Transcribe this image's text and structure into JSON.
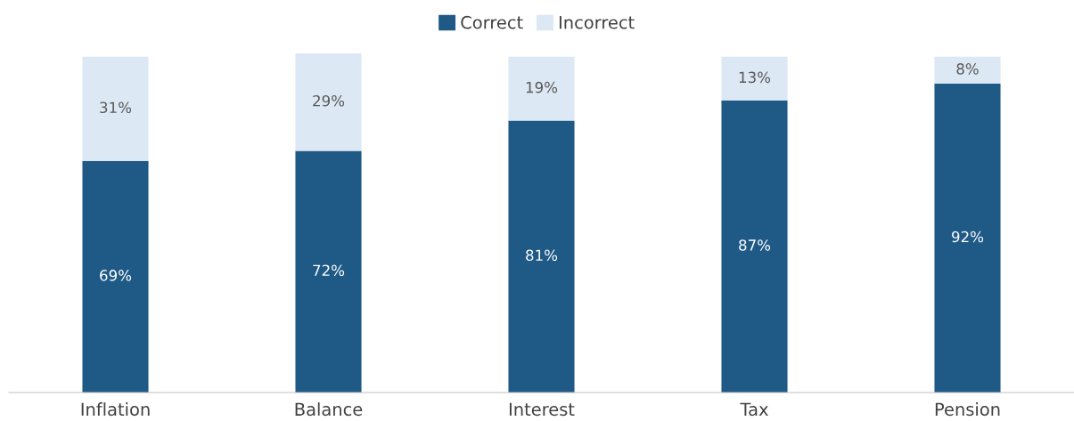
{
  "chart_data": {
    "type": "bar",
    "stacked": true,
    "categories": [
      "Inflation",
      "Balance",
      "Interest",
      "Tax",
      "Pension"
    ],
    "series": [
      {
        "name": "Correct",
        "color": "#1f5a87",
        "values": [
          69,
          72,
          81,
          87,
          92
        ],
        "value_labels": [
          "69%",
          "72%",
          "81%",
          "87%",
          "92%"
        ]
      },
      {
        "name": "Incorrect",
        "color": "#dce8f4",
        "values": [
          31,
          29,
          19,
          13,
          8
        ],
        "value_labels": [
          "31%",
          "29%",
          "19%",
          "13%",
          "8%"
        ]
      }
    ],
    "legend": "top",
    "grid": false
  }
}
